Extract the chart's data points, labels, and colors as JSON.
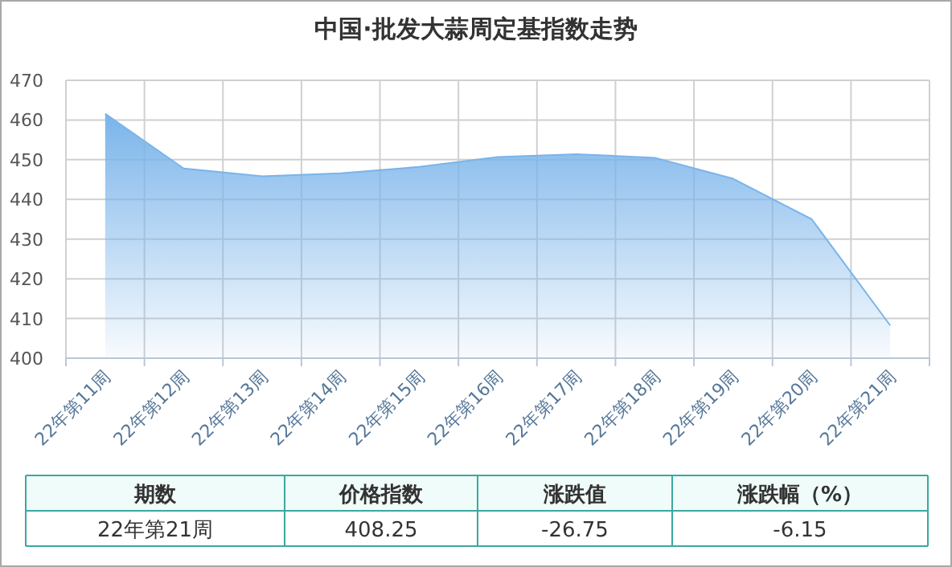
{
  "chart_data": {
    "type": "area",
    "title": "中国·批发大蒜周定基指数走势",
    "categories": [
      "22年第11周",
      "22年第12周",
      "22年第13周",
      "22年第14周",
      "22年第15周",
      "22年第16周",
      "22年第17周",
      "22年第18周",
      "22年第19周",
      "22年第20周",
      "22年第21周"
    ],
    "series": [
      {
        "color": "#7ab4ea",
        "values": [
          461.6,
          447.8,
          445.8,
          446.6,
          448.2,
          450.7,
          451.4,
          450.5,
          445.2,
          435.0,
          408.25
        ]
      }
    ],
    "ylim": [
      400,
      470
    ],
    "yticks": [
      400,
      410,
      420,
      430,
      440,
      450,
      460,
      470
    ],
    "grid": true,
    "annotations": [
      "期数",
      "价格指数",
      "涨跌值",
      "涨跌幅（%）",
      "22年第21周",
      "408.25",
      "-26.75",
      "-6.15"
    ]
  }
}
